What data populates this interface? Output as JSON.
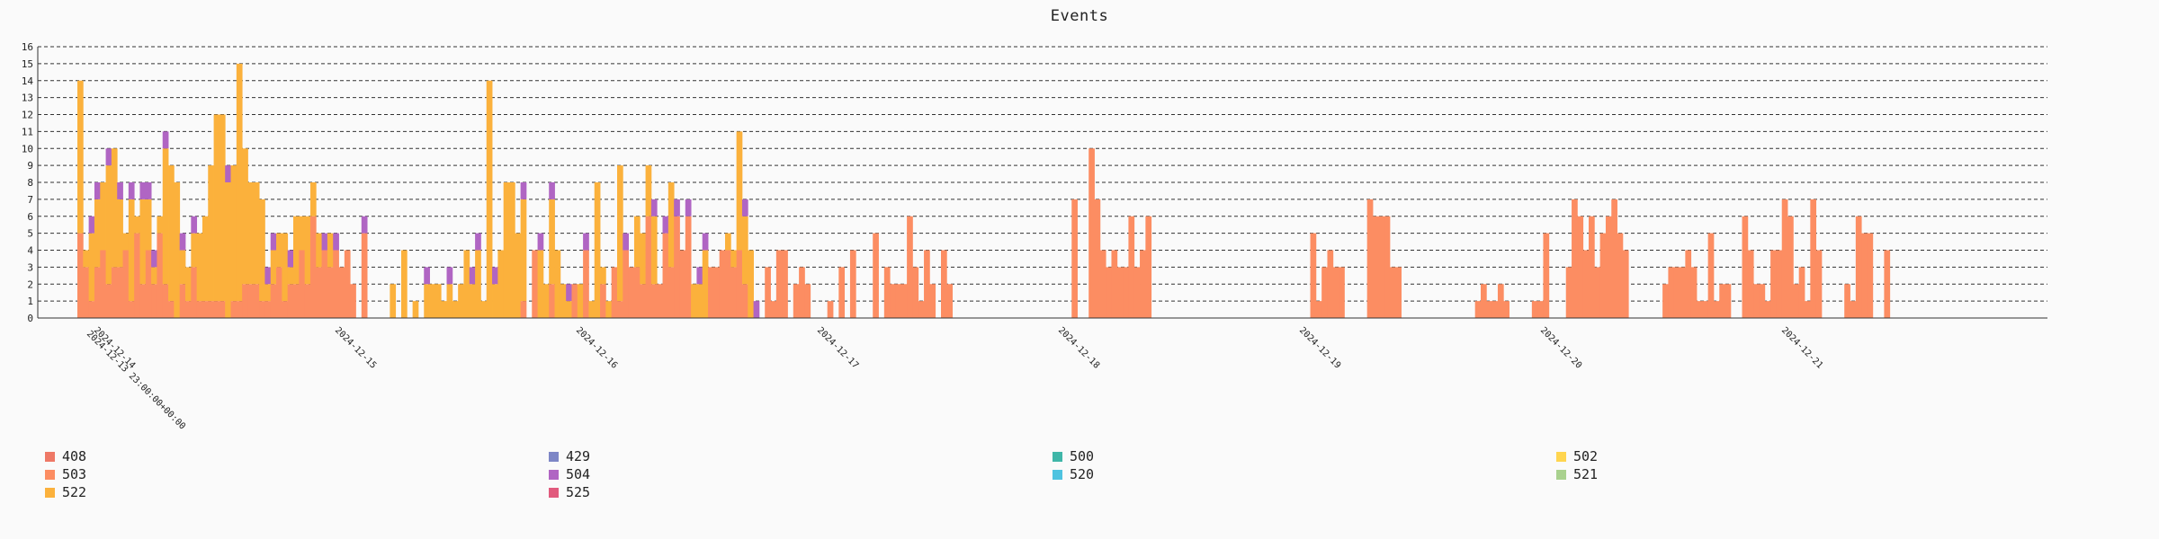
{
  "chart_data": {
    "type": "bar",
    "title": "Events",
    "stacked": true,
    "ylim": [
      0,
      16
    ],
    "yticks": [
      0,
      1,
      2,
      3,
      4,
      5,
      6,
      7,
      8,
      9,
      10,
      11,
      12,
      13,
      14,
      15,
      16
    ],
    "grid": "dashed horizontal",
    "legend_placement": "bottom",
    "x_tick_labels": [
      "2024-12-14",
      "2024-12-13 23:00:00+00:00",
      "2024-12-15",
      "2024-12-16",
      "2024-12-17",
      "2024-12-18",
      "2024-12-19",
      "2024-12-20",
      "2024-12-21"
    ],
    "colors": {
      "408": "#ee7866",
      "503": "#fc8d62",
      "522": "#fbb13c",
      "429": "#7d86c6",
      "504": "#b065c3",
      "525": "#e15a7d",
      "500": "#3fb6a8",
      "520": "#4ec3e0",
      "502": "#ffd54f",
      "521": "#a9d18e"
    },
    "series": [
      {
        "name": "408",
        "values": [
          0,
          0,
          0,
          0,
          0,
          0,
          0,
          0,
          0,
          0,
          0,
          0,
          0,
          0,
          0,
          0,
          0,
          0,
          0,
          0,
          0,
          0,
          0,
          0,
          0,
          0,
          0,
          0,
          0,
          0,
          0,
          0,
          0,
          0,
          0,
          0,
          0,
          0,
          0,
          0,
          0,
          0,
          0,
          0,
          0,
          0,
          0,
          0,
          0,
          0,
          0,
          0,
          0,
          0,
          0,
          0,
          0,
          0,
          0,
          0,
          0,
          0,
          0,
          0,
          0,
          0,
          0,
          0,
          0,
          0,
          0,
          0,
          0,
          0,
          0,
          0,
          0,
          0,
          0,
          0,
          0,
          0,
          0,
          0,
          0,
          0,
          0,
          0,
          0,
          0,
          0,
          0,
          0,
          0,
          0,
          0,
          0,
          0,
          0,
          0,
          0,
          0,
          0,
          0,
          0,
          0,
          0,
          0,
          0,
          0,
          0,
          0,
          0,
          0,
          0,
          0,
          0,
          0,
          0,
          0,
          0,
          0,
          0,
          0,
          0,
          0,
          0,
          0,
          0,
          0,
          0,
          0,
          0,
          0,
          0,
          0,
          0,
          0,
          0,
          0,
          0,
          0,
          0,
          0,
          0,
          0,
          0,
          0,
          0,
          0,
          0,
          0,
          0,
          0,
          0,
          0,
          0,
          0,
          0,
          0,
          0,
          0,
          0,
          0,
          0,
          0,
          0,
          0,
          0,
          0,
          0,
          0,
          0,
          0,
          0,
          0,
          0,
          0,
          0,
          0,
          0,
          0,
          0,
          0,
          0,
          0,
          0,
          0,
          0,
          0,
          0,
          0,
          0,
          0,
          0,
          0,
          0,
          0,
          0,
          0,
          0,
          0,
          0,
          0,
          0,
          0,
          0,
          0,
          0,
          0,
          0,
          0,
          0,
          0,
          0,
          0,
          0,
          0,
          0,
          0,
          0,
          0,
          0,
          0,
          0,
          0,
          0,
          0,
          0,
          0,
          0,
          0,
          0,
          0,
          0,
          0,
          0,
          0,
          0,
          0,
          0,
          0,
          0,
          0,
          0,
          0,
          0,
          0
        ]
      },
      {
        "name": "503",
        "values": [
          5,
          3,
          1,
          3,
          4,
          2,
          3,
          3,
          4,
          1,
          5,
          2,
          4,
          2,
          5,
          2,
          1,
          0,
          2,
          1,
          3,
          1,
          1,
          1,
          1,
          1,
          0,
          1,
          1,
          2,
          2,
          2,
          1,
          1,
          2,
          3,
          1,
          2,
          2,
          4,
          2,
          6,
          3,
          4,
          3,
          4,
          3,
          4,
          2,
          0,
          5,
          0,
          0,
          0,
          0,
          0,
          0,
          0,
          0,
          0,
          0,
          0,
          0,
          0,
          0,
          0,
          0,
          0,
          0,
          0,
          0,
          0,
          0,
          0,
          0,
          0,
          0,
          0,
          1,
          0,
          4,
          0,
          0,
          2,
          0,
          0,
          0,
          2,
          0,
          4,
          0,
          0,
          2,
          0,
          3,
          1,
          4,
          3,
          3,
          2,
          6,
          2,
          2,
          5,
          3,
          6,
          4,
          6,
          0,
          0,
          0,
          3,
          3,
          4,
          4,
          3,
          4,
          2,
          0,
          0,
          0,
          3,
          1,
          4,
          4,
          0,
          2,
          3,
          2,
          0,
          0,
          0,
          1,
          0,
          3,
          0,
          4,
          0,
          0,
          0,
          5,
          0,
          3,
          2,
          2,
          2,
          6,
          3,
          1,
          4,
          2,
          0,
          4,
          2,
          0,
          0,
          0,
          0,
          0,
          0,
          0,
          0,
          0,
          0,
          0,
          0,
          0,
          0,
          0,
          0,
          0,
          0,
          0,
          0,
          0,
          7,
          0,
          0,
          10,
          7,
          4,
          3,
          4,
          3,
          3,
          6,
          3,
          4,
          6,
          0,
          0,
          0,
          0,
          0,
          0,
          0,
          0,
          0,
          0,
          0,
          0,
          0,
          0,
          0,
          0,
          0,
          0,
          0,
          0,
          0,
          0,
          0,
          0,
          0,
          0,
          0,
          0,
          5,
          1,
          3,
          4,
          3,
          3,
          0,
          0,
          0,
          0,
          7,
          6,
          6,
          6,
          3,
          3,
          0,
          0,
          0,
          0,
          0,
          0,
          0,
          0,
          0,
          0,
          0,
          0,
          0,
          1,
          2,
          1,
          1,
          2,
          1,
          0,
          0,
          0,
          0,
          1,
          1,
          5,
          0,
          0,
          0,
          3,
          7,
          6,
          4,
          6,
          3,
          5,
          6,
          7,
          5,
          4,
          0,
          0,
          0,
          0,
          0,
          0,
          2,
          3,
          3,
          3,
          4,
          3,
          1,
          1,
          5,
          1,
          2,
          2,
          0,
          0,
          6,
          4,
          2,
          2,
          1,
          4,
          4,
          7,
          6,
          2,
          3,
          1,
          7,
          4,
          0,
          0,
          0,
          0,
          2,
          1,
          6,
          5,
          5,
          0,
          0,
          4,
          0,
          0,
          0
        ]
      },
      {
        "name": "522",
        "values": [
          9,
          1,
          4,
          4,
          4,
          7,
          7,
          4,
          1,
          6,
          1,
          5,
          3,
          1,
          1,
          8,
          8,
          8,
          2,
          2,
          2,
          4,
          5,
          8,
          11,
          11,
          8,
          8,
          14,
          8,
          6,
          6,
          6,
          1,
          2,
          2,
          4,
          1,
          4,
          2,
          4,
          2,
          2,
          0,
          2,
          0,
          0,
          0,
          0,
          0,
          0,
          0,
          0,
          0,
          0,
          2,
          0,
          4,
          0,
          1,
          0,
          2,
          2,
          2,
          1,
          2,
          1,
          2,
          4,
          2,
          4,
          1,
          14,
          2,
          4,
          8,
          8,
          5,
          6,
          0,
          0,
          4,
          2,
          5,
          4,
          2,
          1,
          0,
          2,
          0,
          1,
          8,
          1,
          1,
          0,
          8,
          0,
          0,
          3,
          3,
          3,
          4,
          0,
          0,
          5,
          0,
          0,
          0,
          2,
          2,
          4,
          0,
          0,
          0,
          1,
          1,
          7,
          4,
          4,
          0,
          0,
          0,
          0,
          0,
          0,
          0,
          0,
          0,
          0,
          0,
          0,
          0,
          0,
          0,
          0,
          0,
          0,
          0,
          0,
          0,
          0,
          0,
          0,
          0,
          0,
          0,
          0,
          0,
          0,
          0,
          0,
          0,
          0,
          0,
          0,
          0,
          0,
          0,
          0,
          0,
          0,
          0,
          0,
          0,
          0,
          0,
          0,
          0,
          0,
          0,
          0,
          0,
          0,
          0,
          0,
          0,
          0,
          0,
          0,
          0,
          0,
          0,
          0,
          0,
          0,
          0,
          0,
          0,
          0,
          0,
          0,
          0,
          0,
          0,
          0,
          0,
          0,
          0,
          0,
          0,
          0,
          0,
          0,
          0,
          0,
          0,
          0,
          0,
          0,
          0,
          0,
          0,
          0,
          0,
          0,
          0,
          0,
          0,
          0,
          0,
          0,
          0,
          0,
          0,
          0,
          0,
          0,
          0,
          0,
          0,
          0,
          0,
          0,
          0,
          0,
          0,
          0,
          0,
          0,
          0,
          0,
          0,
          0,
          0,
          0,
          0,
          0,
          0,
          0,
          0,
          0,
          0,
          0,
          0,
          0,
          0,
          0,
          0,
          0,
          0,
          0,
          0,
          0,
          0,
          0,
          0,
          0,
          0,
          0,
          0,
          0,
          0,
          0,
          0,
          0,
          0,
          0,
          0,
          0,
          0,
          0,
          0,
          0,
          0,
          0,
          0,
          0,
          0,
          0,
          0,
          0,
          0,
          0,
          0,
          0,
          0,
          0,
          0,
          0,
          0,
          0,
          0,
          0,
          0,
          0,
          0,
          0,
          0,
          0,
          0,
          0,
          0,
          0,
          0,
          0,
          0,
          0,
          0,
          0,
          0,
          0,
          0,
          0,
          0,
          0,
          0,
          0,
          0,
          0,
          0,
          0,
          0,
          0,
          0,
          0,
          0,
          0,
          0,
          0,
          0,
          0,
          0
        ]
      },
      {
        "name": "429",
        "values": []
      },
      {
        "name": "504",
        "values": [
          0,
          0,
          1,
          1,
          0,
          1,
          0,
          1,
          0,
          1,
          0,
          1,
          1,
          1,
          0,
          1,
          0,
          0,
          1,
          0,
          1,
          0,
          0,
          0,
          0,
          0,
          1,
          0,
          0,
          0,
          0,
          0,
          0,
          1,
          1,
          0,
          0,
          1,
          0,
          0,
          0,
          0,
          0,
          1,
          0,
          1,
          0,
          0,
          0,
          0,
          1,
          0,
          0,
          0,
          0,
          0,
          0,
          0,
          0,
          0,
          0,
          1,
          0,
          0,
          0,
          1,
          0,
          0,
          0,
          1,
          1,
          0,
          0,
          1,
          0,
          0,
          0,
          0,
          1,
          0,
          0,
          1,
          0,
          1,
          0,
          0,
          1,
          0,
          0,
          1,
          0,
          0,
          0,
          0,
          0,
          0,
          1,
          0,
          0,
          0,
          0,
          1,
          0,
          1,
          0,
          1,
          0,
          1,
          0,
          1,
          1,
          0,
          0,
          0,
          0,
          0,
          0,
          1,
          0,
          1,
          0,
          0,
          0,
          0,
          0,
          0,
          0,
          0,
          0,
          0,
          0,
          0,
          0,
          0,
          0,
          0,
          0,
          0,
          0,
          0,
          0,
          0,
          0,
          0,
          0,
          0,
          0,
          0,
          0,
          0,
          0,
          0,
          0,
          0,
          0,
          0,
          0,
          0,
          0,
          0,
          0,
          0,
          0,
          0,
          0,
          0,
          0,
          0,
          0,
          0,
          0,
          0,
          0,
          0,
          0,
          0,
          0,
          0,
          0,
          0,
          0,
          0,
          0,
          0,
          0,
          0,
          0,
          0,
          0,
          0,
          0,
          0,
          0,
          0,
          0,
          0,
          0,
          0,
          0,
          0,
          0,
          0,
          0,
          0,
          0,
          0,
          0,
          0,
          0,
          0,
          0,
          0,
          0,
          0,
          0,
          0,
          0,
          0,
          0,
          0,
          0,
          0,
          0,
          0,
          0,
          0,
          0,
          0,
          0,
          0,
          0,
          0,
          0,
          0,
          0,
          0,
          0,
          0,
          0,
          0,
          0,
          0,
          0,
          0,
          0,
          0,
          0,
          0,
          0,
          0,
          0,
          0,
          0,
          0,
          0,
          0,
          0,
          0,
          0,
          0,
          0,
          0,
          0,
          0,
          0,
          0,
          0,
          0,
          0,
          0,
          0,
          0,
          0,
          0,
          0,
          0,
          0,
          0,
          0,
          0,
          0,
          0,
          0,
          0,
          0,
          0,
          0,
          0,
          0,
          0,
          0,
          0,
          0,
          0,
          0,
          0,
          0,
          0,
          0,
          0,
          0,
          0,
          0,
          0,
          0,
          0,
          0,
          0,
          0,
          0,
          0,
          0,
          0,
          0,
          0,
          0,
          0,
          0,
          0,
          0,
          0,
          0,
          0
        ]
      },
      {
        "name": "525",
        "values": []
      },
      {
        "name": "500",
        "values": []
      },
      {
        "name": "520",
        "values": []
      },
      {
        "name": "502",
        "values": []
      },
      {
        "name": "521",
        "values": []
      }
    ]
  }
}
